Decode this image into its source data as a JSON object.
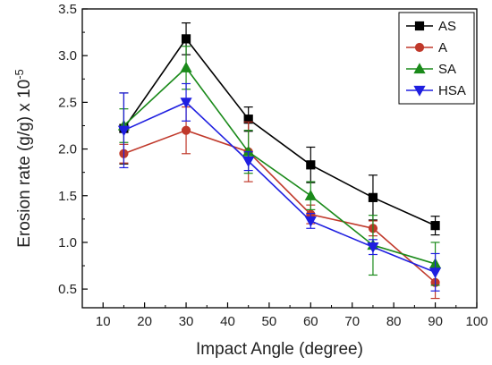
{
  "chart_data": {
    "type": "line",
    "title": "",
    "xlabel": "Impact Angle (degree)",
    "ylabel": "Erosion rate (g/g) x 10",
    "ylabel_exponent": "-5",
    "xlim": [
      5,
      100
    ],
    "ylim": [
      0.3,
      3.5
    ],
    "x_ticks": [
      10,
      20,
      30,
      40,
      50,
      60,
      70,
      80,
      90,
      100
    ],
    "y_ticks": [
      0.5,
      1.0,
      1.5,
      2.0,
      2.5,
      3.0,
      3.5
    ],
    "x_tick_labels": [
      "10",
      "20",
      "30",
      "40",
      "50",
      "60",
      "70",
      "80",
      "90",
      "100"
    ],
    "y_tick_labels": [
      "0.5",
      "1.0",
      "1.5",
      "2.0",
      "2.5",
      "3.0",
      "3.5"
    ],
    "grid": false,
    "legend_position": "top-right",
    "x": [
      15,
      30,
      45,
      60,
      75,
      90
    ],
    "series": [
      {
        "name": "AS",
        "color": "#000000",
        "marker": "square",
        "values": [
          2.22,
          3.18,
          2.32,
          1.83,
          1.48,
          1.18
        ],
        "errors": [
          0.38,
          0.17,
          0.13,
          0.19,
          0.24,
          0.1
        ]
      },
      {
        "name": "A",
        "color": "#c0392b",
        "marker": "circle",
        "values": [
          1.95,
          2.2,
          1.97,
          1.3,
          1.15,
          0.57
        ],
        "errors": [
          0.1,
          0.25,
          0.32,
          0.1,
          0.08,
          0.17
        ]
      },
      {
        "name": "SA",
        "color": "#1a8a1a",
        "marker": "triangle-up",
        "values": [
          2.25,
          2.87,
          1.97,
          1.5,
          0.97,
          0.77
        ],
        "errors": [
          0.18,
          0.23,
          0.23,
          0.15,
          0.32,
          0.23
        ]
      },
      {
        "name": "HSA",
        "color": "#1f1fe0",
        "marker": "triangle-down",
        "values": [
          2.2,
          2.5,
          1.87,
          1.23,
          0.95,
          0.68
        ],
        "errors": [
          0.4,
          0.2,
          0.1,
          0.08,
          0.08,
          0.2
        ]
      }
    ]
  }
}
